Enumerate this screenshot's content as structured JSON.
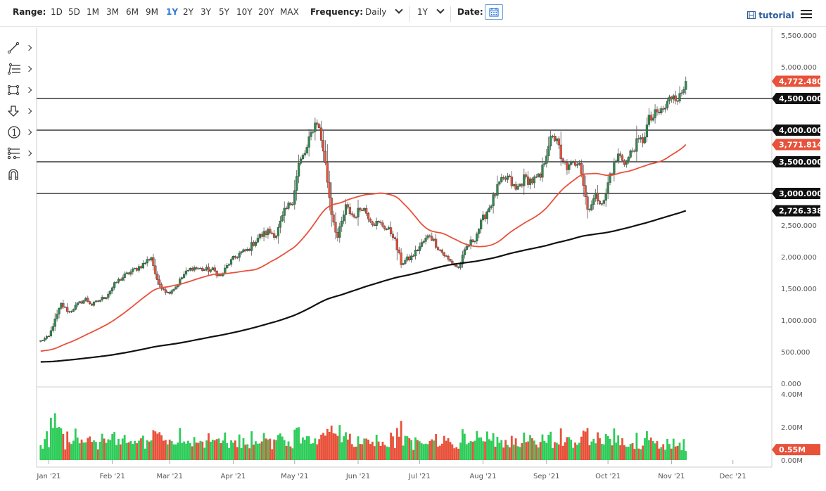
{
  "toolbar": {
    "range_label": "Range:",
    "ranges": [
      "1D",
      "5D",
      "1M",
      "3M",
      "6M",
      "9M",
      "1Y",
      "2Y",
      "3Y",
      "5Y",
      "10Y",
      "20Y",
      "MAX"
    ],
    "active_range": "1Y",
    "frequency_label": "Frequency:",
    "frequency_value": "Daily",
    "period_value": "1Y",
    "date_label": "Date:",
    "tutorial_label": "tutorial"
  },
  "drawing_tools": [
    "trendline-tool",
    "fib-tool",
    "rectangle-tool",
    "arrow-tool",
    "note-tool",
    "pattern-tool",
    "magnet-tool"
  ],
  "colors": {
    "up": "#2e8b4e",
    "down": "#e8513a",
    "ma_fast": "#e8513a",
    "ma_slow": "#111111",
    "vol_up": "#2ecc5a",
    "vol_down": "#e8513a",
    "badge_dark": "#111111",
    "badge_red": "#e8513a"
  },
  "chart_data": {
    "type": "candlestick",
    "price_axis": {
      "ylim": [
        0,
        5500
      ],
      "ticks": [
        "0.000",
        "500.000",
        "1,000.000",
        "1,500.000",
        "2,000.000",
        "2,500.000",
        "3,000.000",
        "3,500.000",
        "4,000.000",
        "4,500.000",
        "5,000.000",
        "5,500.000"
      ]
    },
    "volume_axis": {
      "ylim": [
        0,
        4.3
      ],
      "ticks": [
        "0.00M",
        "2.00M",
        "4.00M"
      ]
    },
    "x_ticks": [
      "Jan '21",
      "Feb '21",
      "Mar '21",
      "Apr '21",
      "May '21",
      "Jun '21",
      "Jul '21",
      "Aug '21",
      "Sep '21",
      "Oct '21",
      "Nov '21",
      "Dec '21"
    ],
    "x_range": [
      "2020-12-26",
      "2021-12-20"
    ],
    "horizontal_levels": [
      {
        "value": 4500,
        "label": "4,500.000"
      },
      {
        "value": 4000,
        "label": "4,000.000"
      },
      {
        "value": 3500,
        "label": "3,500.000"
      },
      {
        "value": 3000,
        "label": "3,000.000"
      }
    ],
    "last_price": {
      "value": 4772.48,
      "label": "4,772.480"
    },
    "ma_fast_last": {
      "value": 3771.814,
      "label": "3,771.814"
    },
    "ma_slow_last": {
      "value": 2726.338,
      "label": "2,726.338"
    },
    "volume_last": {
      "value": 0.55,
      "label": "0.55M"
    },
    "close_series": [
      [
        "2020-12-28",
        670
      ],
      [
        "2021-01-01",
        740
      ],
      [
        "2021-01-04",
        1000
      ],
      [
        "2021-01-07",
        1250
      ],
      [
        "2021-01-11",
        1120
      ],
      [
        "2021-01-15",
        1250
      ],
      [
        "2021-01-19",
        1330
      ],
      [
        "2021-01-22",
        1240
      ],
      [
        "2021-01-26",
        1320
      ],
      [
        "2021-01-29",
        1380
      ],
      [
        "2021-02-03",
        1600
      ],
      [
        "2021-02-07",
        1700
      ],
      [
        "2021-02-11",
        1780
      ],
      [
        "2021-02-16",
        1880
      ],
      [
        "2021-02-20",
        2000
      ],
      [
        "2021-02-23",
        1600
      ],
      [
        "2021-02-28",
        1430
      ],
      [
        "2021-03-04",
        1530
      ],
      [
        "2021-03-08",
        1720
      ],
      [
        "2021-03-12",
        1830
      ],
      [
        "2021-03-17",
        1800
      ],
      [
        "2021-03-22",
        1790
      ],
      [
        "2021-03-26",
        1690
      ],
      [
        "2021-03-30",
        1900
      ],
      [
        "2021-04-04",
        2050
      ],
      [
        "2021-04-08",
        2100
      ],
      [
        "2021-04-13",
        2300
      ],
      [
        "2021-04-18",
        2400
      ],
      [
        "2021-04-22",
        2350
      ],
      [
        "2021-04-26",
        2700
      ],
      [
        "2021-04-30",
        2900
      ],
      [
        "2021-05-03",
        3450
      ],
      [
        "2021-05-07",
        3700
      ],
      [
        "2021-05-10",
        4050
      ],
      [
        "2021-05-12",
        4150
      ],
      [
        "2021-05-15",
        3700
      ],
      [
        "2021-05-19",
        2700
      ],
      [
        "2021-05-22",
        2300
      ],
      [
        "2021-05-26",
        2780
      ],
      [
        "2021-05-30",
        2630
      ],
      [
        "2021-06-03",
        2800
      ],
      [
        "2021-06-08",
        2550
      ],
      [
        "2021-06-13",
        2500
      ],
      [
        "2021-06-18",
        2350
      ],
      [
        "2021-06-22",
        1900
      ],
      [
        "2021-06-27",
        1990
      ],
      [
        "2021-07-02",
        2200
      ],
      [
        "2021-07-06",
        2350
      ],
      [
        "2021-07-10",
        2150
      ],
      [
        "2021-07-15",
        1950
      ],
      [
        "2021-07-20",
        1820
      ],
      [
        "2021-07-24",
        2150
      ],
      [
        "2021-07-28",
        2300
      ],
      [
        "2021-08-01",
        2600
      ],
      [
        "2021-08-05",
        2850
      ],
      [
        "2021-08-09",
        3150
      ],
      [
        "2021-08-13",
        3250
      ],
      [
        "2021-08-17",
        3050
      ],
      [
        "2021-08-21",
        3230
      ],
      [
        "2021-08-25",
        3200
      ],
      [
        "2021-08-29",
        3250
      ],
      [
        "2021-09-02",
        3800
      ],
      [
        "2021-09-06",
        3900
      ],
      [
        "2021-09-08",
        3500
      ],
      [
        "2021-09-12",
        3400
      ],
      [
        "2021-09-17",
        3550
      ],
      [
        "2021-09-21",
        2750
      ],
      [
        "2021-09-25",
        2950
      ],
      [
        "2021-09-29",
        2850
      ],
      [
        "2021-10-02",
        3300
      ],
      [
        "2021-10-06",
        3600
      ],
      [
        "2021-10-10",
        3500
      ],
      [
        "2021-10-14",
        3750
      ],
      [
        "2021-10-18",
        3850
      ],
      [
        "2021-10-21",
        4150
      ],
      [
        "2021-10-25",
        4250
      ],
      [
        "2021-10-29",
        4350
      ],
      [
        "2021-11-02",
        4600
      ],
      [
        "2021-11-05",
        4500
      ],
      [
        "2021-11-08",
        4772
      ]
    ]
  }
}
